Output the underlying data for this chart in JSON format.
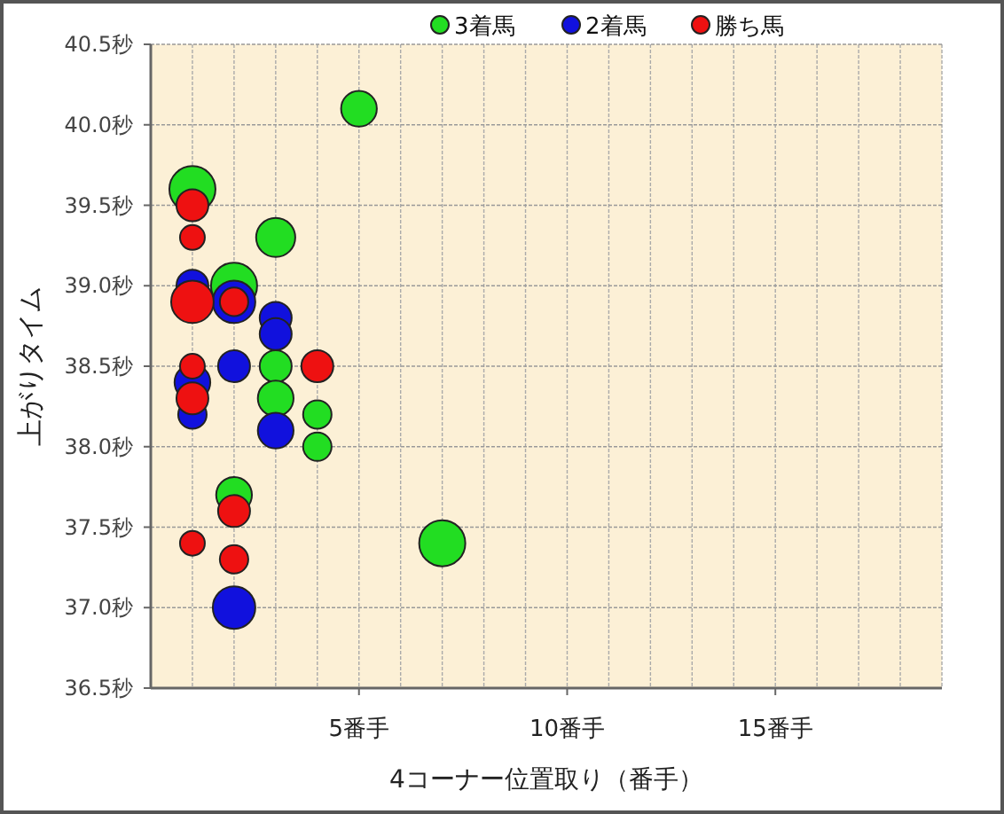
{
  "chart_data": {
    "type": "bubble",
    "xlabel": "4コーナー位置取り（番手）",
    "ylabel": "上がりタイム",
    "xlim": [
      0,
      19
    ],
    "xticks": [
      {
        "value": 5,
        "label": "5番手"
      },
      {
        "value": 10,
        "label": "10番手"
      },
      {
        "value": 15,
        "label": "15番手"
      }
    ],
    "ylim": [
      36.5,
      40.5
    ],
    "yticks": [
      {
        "value": 36.5,
        "label": "36.5秒"
      },
      {
        "value": 37.0,
        "label": "37.0秒"
      },
      {
        "value": 37.5,
        "label": "37.5秒"
      },
      {
        "value": 38.0,
        "label": "38.0秒"
      },
      {
        "value": 38.5,
        "label": "38.5秒"
      },
      {
        "value": 39.0,
        "label": "39.0秒"
      },
      {
        "value": 39.5,
        "label": "39.5秒"
      },
      {
        "value": 40.0,
        "label": "40.0秒"
      },
      {
        "value": 40.5,
        "label": "40.5秒"
      }
    ],
    "grid": true,
    "legend": "top",
    "marker": "circle",
    "series": [
      {
        "name": "3着馬",
        "color": "#22dd22",
        "x": [
          5,
          1,
          3,
          2,
          3,
          3,
          4,
          4,
          2,
          7
        ],
        "values": [
          40.1,
          39.6,
          39.3,
          39.0,
          38.5,
          38.3,
          38.2,
          38.0,
          37.7,
          37.4
        ],
        "sizes": [
          0.6,
          1,
          0.72,
          1,
          0.48,
          0.6,
          0.38,
          0.38,
          0.6,
          1
        ]
      },
      {
        "name": "2着馬",
        "color": "#1111dd",
        "x": [
          1,
          2,
          3,
          3,
          2,
          1,
          1,
          3,
          2
        ],
        "values": [
          39.0,
          38.9,
          38.8,
          38.7,
          38.5,
          38.4,
          38.2,
          38.1,
          37.0
        ],
        "sizes": [
          0.48,
          0.85,
          0.48,
          0.48,
          0.48,
          0.6,
          0.38,
          0.6,
          0.85
        ]
      },
      {
        "name": "勝ち馬",
        "color": "#ee1111",
        "x": [
          1,
          1,
          1,
          2,
          1,
          4,
          1,
          2,
          1,
          2
        ],
        "values": [
          39.5,
          39.3,
          38.9,
          38.9,
          38.5,
          38.5,
          38.3,
          37.6,
          37.4,
          37.3
        ],
        "sizes": [
          0.48,
          0.29,
          0.85,
          0.38,
          0.29,
          0.48,
          0.48,
          0.48,
          0.29,
          0.38
        ]
      }
    ]
  }
}
